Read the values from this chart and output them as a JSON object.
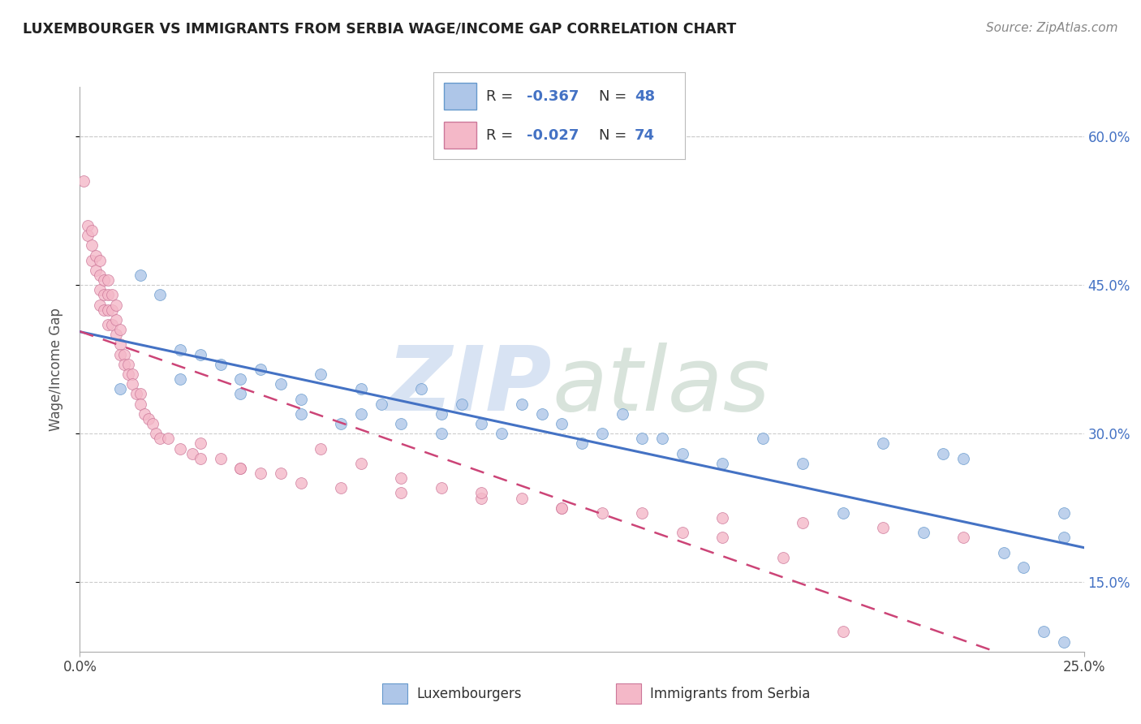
{
  "title": "LUXEMBOURGER VS IMMIGRANTS FROM SERBIA WAGE/INCOME GAP CORRELATION CHART",
  "source": "Source: ZipAtlas.com",
  "ylabel": "Wage/Income Gap",
  "xlim": [
    0.0,
    0.25
  ],
  "ylim": [
    0.08,
    0.65
  ],
  "xticks": [
    0.0,
    0.25
  ],
  "xtick_labels": [
    "0.0%",
    "25.0%"
  ],
  "yticks": [
    0.15,
    0.3,
    0.45,
    0.6
  ],
  "ytick_labels": [
    "15.0%",
    "30.0%",
    "45.0%",
    "60.0%"
  ],
  "blue_fill": "#aec6e8",
  "blue_edge": "#6699cc",
  "pink_fill": "#f4b8c8",
  "pink_edge": "#cc7799",
  "blue_line": "#4472c4",
  "pink_line": "#cc4477",
  "grid_color": "#cccccc",
  "title_color": "#222222",
  "source_color": "#888888",
  "tick_color_right": "#4472c4",
  "legend_box_color": "#4472c4",
  "watermark_zip_color": "#c8d8ee",
  "watermark_atlas_color": "#c8d8cc",
  "blue_x": [
    0.01,
    0.015,
    0.02,
    0.025,
    0.025,
    0.03,
    0.035,
    0.04,
    0.04,
    0.045,
    0.05,
    0.055,
    0.055,
    0.06,
    0.065,
    0.07,
    0.07,
    0.075,
    0.08,
    0.085,
    0.09,
    0.09,
    0.095,
    0.1,
    0.105,
    0.11,
    0.115,
    0.12,
    0.125,
    0.13,
    0.135,
    0.14,
    0.145,
    0.15,
    0.16,
    0.17,
    0.18,
    0.19,
    0.2,
    0.21,
    0.215,
    0.22,
    0.23,
    0.235,
    0.24,
    0.245,
    0.245,
    0.245
  ],
  "blue_y": [
    0.345,
    0.46,
    0.44,
    0.385,
    0.355,
    0.38,
    0.37,
    0.355,
    0.34,
    0.365,
    0.35,
    0.335,
    0.32,
    0.36,
    0.31,
    0.345,
    0.32,
    0.33,
    0.31,
    0.345,
    0.32,
    0.3,
    0.33,
    0.31,
    0.3,
    0.33,
    0.32,
    0.31,
    0.29,
    0.3,
    0.32,
    0.295,
    0.295,
    0.28,
    0.27,
    0.295,
    0.27,
    0.22,
    0.29,
    0.2,
    0.28,
    0.275,
    0.18,
    0.165,
    0.1,
    0.22,
    0.195,
    0.09
  ],
  "pink_x": [
    0.001,
    0.002,
    0.002,
    0.003,
    0.003,
    0.003,
    0.004,
    0.004,
    0.005,
    0.005,
    0.005,
    0.005,
    0.006,
    0.006,
    0.006,
    0.007,
    0.007,
    0.007,
    0.007,
    0.008,
    0.008,
    0.008,
    0.009,
    0.009,
    0.009,
    0.01,
    0.01,
    0.01,
    0.011,
    0.011,
    0.012,
    0.012,
    0.013,
    0.013,
    0.014,
    0.015,
    0.015,
    0.016,
    0.017,
    0.018,
    0.019,
    0.02,
    0.022,
    0.025,
    0.028,
    0.03,
    0.035,
    0.04,
    0.045,
    0.055,
    0.065,
    0.08,
    0.1,
    0.12,
    0.14,
    0.16,
    0.18,
    0.2,
    0.22,
    0.03,
    0.04,
    0.05,
    0.06,
    0.07,
    0.08,
    0.09,
    0.1,
    0.11,
    0.12,
    0.13,
    0.15,
    0.16,
    0.175,
    0.19
  ],
  "pink_y": [
    0.555,
    0.51,
    0.5,
    0.505,
    0.49,
    0.475,
    0.48,
    0.465,
    0.475,
    0.46,
    0.445,
    0.43,
    0.455,
    0.44,
    0.425,
    0.455,
    0.44,
    0.425,
    0.41,
    0.44,
    0.425,
    0.41,
    0.43,
    0.415,
    0.4,
    0.405,
    0.39,
    0.38,
    0.38,
    0.37,
    0.37,
    0.36,
    0.36,
    0.35,
    0.34,
    0.34,
    0.33,
    0.32,
    0.315,
    0.31,
    0.3,
    0.295,
    0.295,
    0.285,
    0.28,
    0.275,
    0.275,
    0.265,
    0.26,
    0.25,
    0.245,
    0.24,
    0.235,
    0.225,
    0.22,
    0.215,
    0.21,
    0.205,
    0.195,
    0.29,
    0.265,
    0.26,
    0.285,
    0.27,
    0.255,
    0.245,
    0.24,
    0.235,
    0.225,
    0.22,
    0.2,
    0.195,
    0.175,
    0.1
  ]
}
